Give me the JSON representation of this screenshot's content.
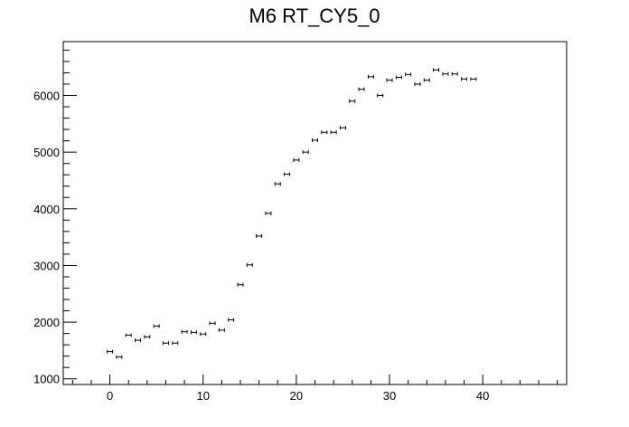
{
  "chart_data": {
    "type": "scatter",
    "title": "M6 RT_CY5_0",
    "xlabel": "",
    "ylabel": "",
    "xlim": [
      -5,
      49
    ],
    "ylim": [
      900,
      6950
    ],
    "x_ticks": [
      0,
      10,
      20,
      30,
      40
    ],
    "y_ticks": [
      1000,
      2000,
      3000,
      4000,
      5000,
      6000
    ],
    "x_tick_labels": [
      "0",
      "10",
      "20",
      "30",
      "40"
    ],
    "y_tick_labels": [
      "1000",
      "2000",
      "3000",
      "4000",
      "5000",
      "6000"
    ],
    "series": [
      {
        "name": "RT_CY5_0",
        "x": [
          0,
          1,
          2,
          3,
          4,
          5,
          6,
          7,
          8,
          9,
          10,
          11,
          12,
          13,
          14,
          15,
          16,
          17,
          18,
          19,
          20,
          21,
          22,
          23,
          24,
          25,
          26,
          27,
          28,
          29,
          30,
          31,
          32,
          33,
          34,
          35,
          36,
          37,
          38,
          39
        ],
        "y": [
          1480,
          1385,
          1770,
          1680,
          1740,
          1930,
          1630,
          1630,
          1830,
          1820,
          1790,
          1980,
          1860,
          2040,
          2660,
          3010,
          3520,
          3920,
          4440,
          4610,
          4860,
          5000,
          5210,
          5350,
          5350,
          5430,
          5900,
          6110,
          6330,
          6000,
          6270,
          6320,
          6370,
          6200,
          6270,
          6450,
          6380,
          6380,
          6290,
          6290
        ]
      }
    ]
  }
}
